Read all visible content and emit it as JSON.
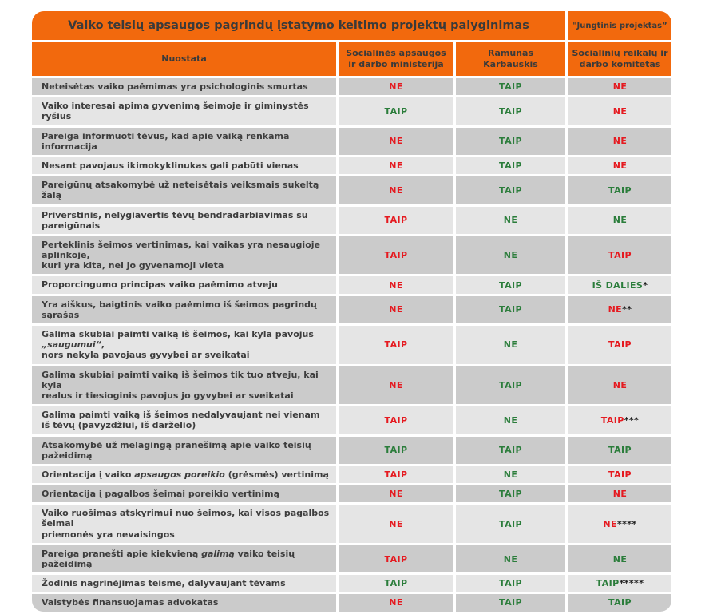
{
  "title": "Vaiko teisių apsaugos pagrindų įstatymo keitimo projektų palyginimas",
  "joint_label": "\"Jungtinis projektas”",
  "colors": {
    "orange": "#F2690D",
    "green": "#2B7D3B",
    "red": "#E51A20",
    "suffix": "#1A1A1A",
    "dark_row": "#CBCBCB",
    "light_row": "#E5E5E5",
    "header_text": "#3A3A3A",
    "label_text": "#3D3D3D"
  },
  "chart_data": {
    "type": "table",
    "columns": [
      "Nuostata",
      "Socialinės apsaugos\nir darbo ministerija",
      "Ramūnas\nKarbauskis",
      "Socialinių reikalų ir\ndarbo komitetas"
    ],
    "rows": [
      {
        "label": [
          {
            "t": "Neteisėtas vaiko paėmimas yra psichologinis smurtas"
          }
        ],
        "values": [
          {
            "v": "NE",
            "c": "red"
          },
          {
            "v": "TAIP",
            "c": "green"
          },
          {
            "v": "NE",
            "c": "red"
          }
        ]
      },
      {
        "label": [
          {
            "t": "Vaiko interesai apima gyvenimą šeimoje ir giminystės ryšius"
          }
        ],
        "values": [
          {
            "v": "TAIP",
            "c": "green"
          },
          {
            "v": "TAIP",
            "c": "green"
          },
          {
            "v": "NE",
            "c": "red"
          }
        ]
      },
      {
        "label": [
          {
            "t": "Pareiga informuoti tėvus, kad apie vaiką renkama informacija"
          }
        ],
        "values": [
          {
            "v": "NE",
            "c": "red"
          },
          {
            "v": "TAIP",
            "c": "green"
          },
          {
            "v": "NE",
            "c": "red"
          }
        ]
      },
      {
        "label": [
          {
            "t": "Nesant pavojaus ikimokyklinukas gali pabūti vienas"
          }
        ],
        "values": [
          {
            "v": "NE",
            "c": "red"
          },
          {
            "v": "TAIP",
            "c": "green"
          },
          {
            "v": "NE",
            "c": "red"
          }
        ]
      },
      {
        "label": [
          {
            "t": "Pareigūnų atsakomybė už neteisėtais veiksmais sukeltą žalą"
          }
        ],
        "values": [
          {
            "v": "NE",
            "c": "red"
          },
          {
            "v": "TAIP",
            "c": "green"
          },
          {
            "v": "TAIP",
            "c": "green"
          }
        ]
      },
      {
        "label": [
          {
            "t": "Priverstinis, nelygiavertis tėvų bendradarbiavimas su pareigūnais"
          }
        ],
        "values": [
          {
            "v": "TAIP",
            "c": "red"
          },
          {
            "v": "NE",
            "c": "green"
          },
          {
            "v": "NE",
            "c": "green"
          }
        ]
      },
      {
        "label": [
          {
            "t": "Perteklinis šeimos vertinimas, kai vaikas yra nesaugioje aplinkoje,\nkuri yra kita, nei jo gyvenamoji vieta"
          }
        ],
        "values": [
          {
            "v": "TAIP",
            "c": "red"
          },
          {
            "v": "NE",
            "c": "green"
          },
          {
            "v": "TAIP",
            "c": "red"
          }
        ]
      },
      {
        "label": [
          {
            "t": "Proporcingumo principas vaiko paėmimo atveju"
          }
        ],
        "values": [
          {
            "v": "NE",
            "c": "red"
          },
          {
            "v": "TAIP",
            "c": "green"
          },
          {
            "v": "IŠ DALIES",
            "c": "green",
            "s": "*"
          }
        ]
      },
      {
        "label": [
          {
            "t": "Yra aiškus, baigtinis vaiko paėmimo iš šeimos pagrindų sąrašas"
          }
        ],
        "values": [
          {
            "v": "NE",
            "c": "red"
          },
          {
            "v": "TAIP",
            "c": "green"
          },
          {
            "v": "NE",
            "c": "red",
            "s": "**"
          }
        ]
      },
      {
        "label": [
          {
            "t": "Galima skubiai paimti vaiką iš šeimos, kai kyla pavojus "
          },
          {
            "t": "„saugumui“",
            "i": true
          },
          {
            "t": ",\nnors nekyla pavojaus gyvybei ar sveikatai"
          }
        ],
        "values": [
          {
            "v": "TAIP",
            "c": "red"
          },
          {
            "v": "NE",
            "c": "green"
          },
          {
            "v": "TAIP",
            "c": "red"
          }
        ]
      },
      {
        "label": [
          {
            "t": "Galima skubiai paimti vaiką iš šeimos tik tuo atveju, kai kyla\nrealus ir tiesioginis pavojus jo gyvybei ar sveikatai"
          }
        ],
        "values": [
          {
            "v": "NE",
            "c": "red"
          },
          {
            "v": "TAIP",
            "c": "green"
          },
          {
            "v": "NE",
            "c": "red"
          }
        ]
      },
      {
        "label": [
          {
            "t": "Galima paimti vaiką iš šeimos nedalyvaujant nei vienam\niš tėvų (pavyzdžiui, iš darželio)"
          }
        ],
        "values": [
          {
            "v": "TAIP",
            "c": "red"
          },
          {
            "v": "NE",
            "c": "green"
          },
          {
            "v": "TAIP",
            "c": "red",
            "s": "***"
          }
        ]
      },
      {
        "label": [
          {
            "t": "Atsakomybė už melagingą pranešimą apie vaiko teisių pažeidimą"
          }
        ],
        "values": [
          {
            "v": "TAIP",
            "c": "green"
          },
          {
            "v": "TAIP",
            "c": "green"
          },
          {
            "v": "TAIP",
            "c": "green"
          }
        ]
      },
      {
        "label": [
          {
            "t": "Orientacija į vaiko "
          },
          {
            "t": "apsaugos poreikio",
            "i": true
          },
          {
            "t": " (grėsmės) vertinimą"
          }
        ],
        "values": [
          {
            "v": "TAIP",
            "c": "red"
          },
          {
            "v": "NE",
            "c": "green"
          },
          {
            "v": "TAIP",
            "c": "red"
          }
        ]
      },
      {
        "label": [
          {
            "t": "Orientacija į pagalbos šeimai poreikio vertinimą"
          }
        ],
        "values": [
          {
            "v": "NE",
            "c": "red"
          },
          {
            "v": "TAIP",
            "c": "green"
          },
          {
            "v": "NE",
            "c": "red"
          }
        ]
      },
      {
        "label": [
          {
            "t": "Vaiko ruošimas atskyrimui nuo šeimos, kai visos pagalbos šeimai\npriemonės yra nevaisingos"
          }
        ],
        "values": [
          {
            "v": "NE",
            "c": "red"
          },
          {
            "v": "TAIP",
            "c": "green"
          },
          {
            "v": "NE",
            "c": "red",
            "s": "****"
          }
        ]
      },
      {
        "label": [
          {
            "t": "Pareiga pranešti apie kiekvieną "
          },
          {
            "t": "galimą",
            "i": true
          },
          {
            "t": " vaiko teisių pažeidimą"
          }
        ],
        "values": [
          {
            "v": "TAIP",
            "c": "red"
          },
          {
            "v": "NE",
            "c": "green"
          },
          {
            "v": "NE",
            "c": "green"
          }
        ]
      },
      {
        "label": [
          {
            "t": "Žodinis nagrinėjimas teisme, dalyvaujant tėvams"
          }
        ],
        "values": [
          {
            "v": "TAIP",
            "c": "green"
          },
          {
            "v": "TAIP",
            "c": "green"
          },
          {
            "v": "TAIP",
            "c": "green",
            "s": "*****"
          }
        ]
      },
      {
        "label": [
          {
            "t": "Valstybės finansuojamas advokatas"
          }
        ],
        "values": [
          {
            "v": "NE",
            "c": "red"
          },
          {
            "v": "TAIP",
            "c": "green"
          },
          {
            "v": "TAIP",
            "c": "green"
          }
        ]
      }
    ]
  }
}
